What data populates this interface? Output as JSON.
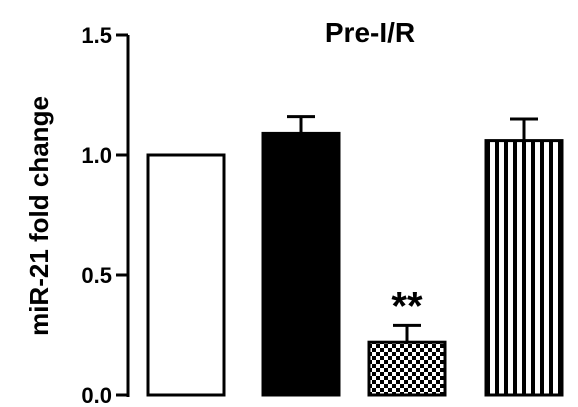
{
  "chart_data": {
    "type": "bar",
    "title": "Pre-I/R",
    "xlabel": "",
    "ylabel": "miR-21 fold change",
    "ylim": [
      0,
      1.5
    ],
    "yticks": [
      "0.0",
      "0.5",
      "1.0",
      "1.5"
    ],
    "grid": false,
    "legend": "none",
    "bars": [
      {
        "value": 1.0,
        "error": 0.0,
        "fill": "white",
        "annotation": ""
      },
      {
        "value": 1.09,
        "error": 0.07,
        "fill": "black",
        "annotation": ""
      },
      {
        "value": 0.22,
        "error": 0.07,
        "fill": "checker",
        "annotation": "**"
      },
      {
        "value": 1.06,
        "error": 0.09,
        "fill": "vertical-stripes",
        "annotation": ""
      }
    ]
  },
  "colors": {
    "ink": "#000000",
    "background": "#ffffff"
  }
}
